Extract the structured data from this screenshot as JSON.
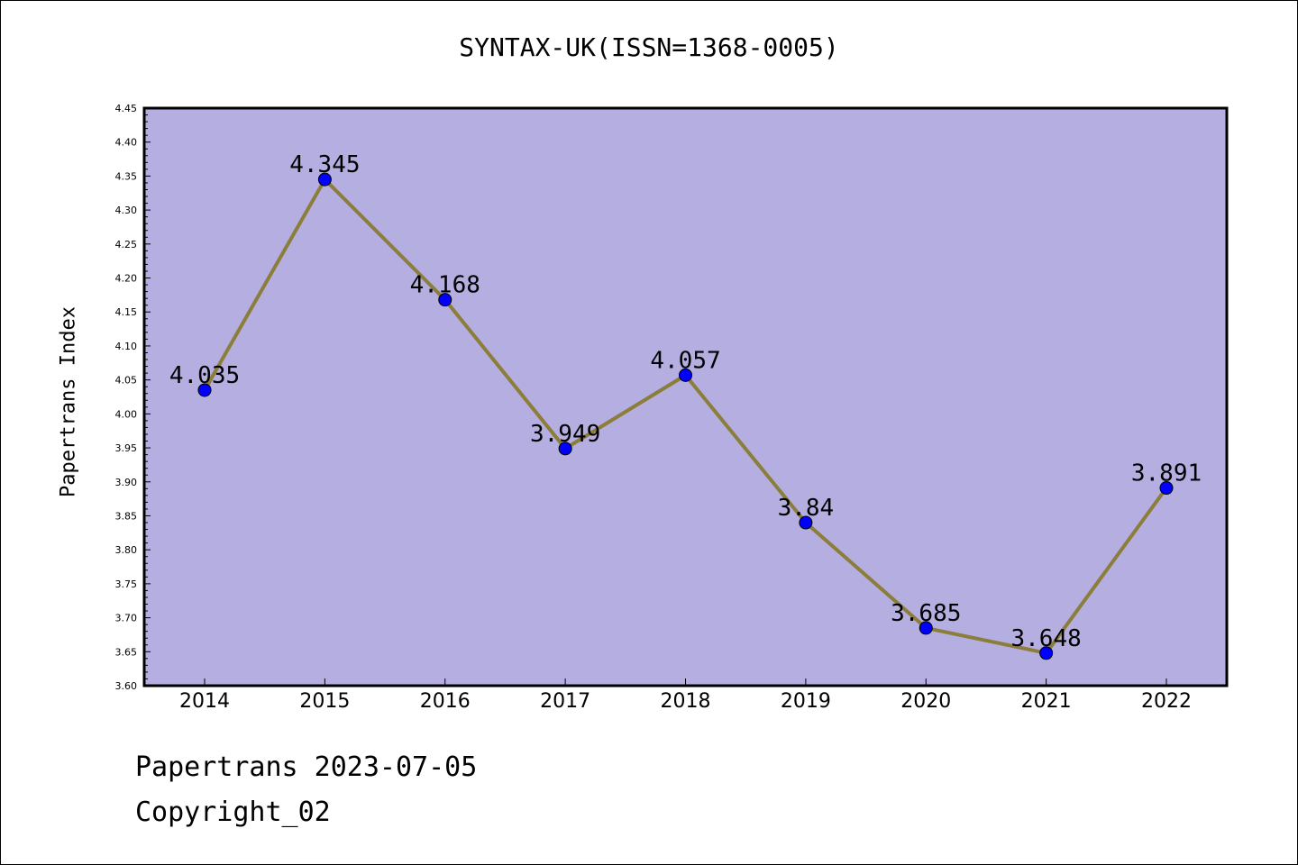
{
  "chart_data": {
    "type": "line",
    "title": "SYNTAX-UK(ISSN=1368-0005)",
    "xlabel": "",
    "ylabel": "Papertrans Index",
    "categories": [
      "2014",
      "2015",
      "2016",
      "2017",
      "2018",
      "2019",
      "2020",
      "2021",
      "2022"
    ],
    "series": [
      {
        "values": [
          4.035,
          4.345,
          4.168,
          3.949,
          4.057,
          3.84,
          3.685,
          3.648,
          3.891
        ],
        "labels": [
          "4.035",
          "4.345",
          "4.168",
          "3.949",
          "4.057",
          "3.84",
          "3.685",
          "3.648",
          "3.891"
        ],
        "line_color": "#8B7D3A",
        "marker_color": "#0000FF"
      }
    ],
    "ylim": [
      3.6,
      4.45
    ],
    "yticks": [
      "3.60",
      "3.65",
      "3.70",
      "3.75",
      "3.80",
      "3.85",
      "3.90",
      "3.95",
      "4.00",
      "4.05",
      "4.10",
      "4.15",
      "4.20",
      "4.25",
      "4.30",
      "4.35",
      "4.40",
      "4.45"
    ],
    "plot_background": "#B5AEE0",
    "grid": false
  },
  "footer": {
    "line1": "Papertrans 2023-07-05",
    "line2": "Copyright_02"
  }
}
